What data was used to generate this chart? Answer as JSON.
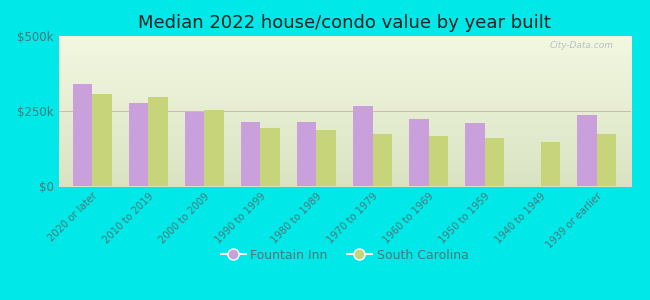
{
  "title": "Median 2022 house/condo value by year built",
  "categories": [
    "2020 or later",
    "2010 to 2019",
    "2000 to 2009",
    "1990 to 1999",
    "1980 to 1989",
    "1970 to 1979",
    "1960 to 1969",
    "1950 to 1959",
    "1940 to 1949",
    "1939 or earlier"
  ],
  "fountain_inn": [
    340000,
    278000,
    248000,
    215000,
    212000,
    268000,
    225000,
    210000,
    0,
    238000
  ],
  "south_carolina": [
    308000,
    298000,
    255000,
    192000,
    188000,
    172000,
    168000,
    160000,
    148000,
    172000
  ],
  "fountain_inn_color": "#c9a0dc",
  "south_carolina_color": "#c8d47a",
  "background_outer": "#00e8e8",
  "background_inner_top": "#f5f8ee",
  "background_inner_bottom": "#dce8c0",
  "ylim": [
    0,
    500000
  ],
  "ytick_labels": [
    "$0",
    "$250k",
    "$500k"
  ],
  "legend_labels": [
    "Fountain Inn",
    "South Carolina"
  ],
  "bar_width": 0.35,
  "title_fontsize": 13,
  "watermark": "City-Data.com"
}
